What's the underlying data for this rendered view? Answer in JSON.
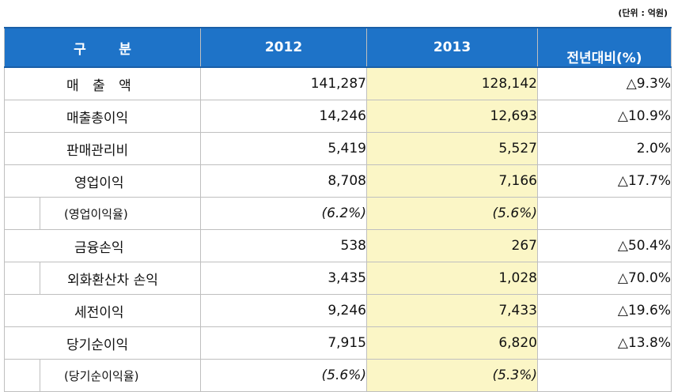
{
  "unit_note": "(단위 : 억원)",
  "headers": {
    "category": "구       분",
    "y2012": "2012",
    "y2013": "2013",
    "yoy": "전년대비(%)"
  },
  "rows": [
    {
      "label": "매 출 액",
      "v2012": "141,287",
      "v2013": "128,142",
      "yoy": "△9.3%"
    },
    {
      "label": "매출총이익",
      "v2012": "14,246",
      "v2013": "12,693",
      "yoy": "△10.9%"
    },
    {
      "label": "판매관리비",
      "v2012": "5,419",
      "v2013": "5,527",
      "yoy": "2.0%"
    },
    {
      "label": "영업이익",
      "v2012": "8,708",
      "v2013": "7,166",
      "yoy": "△17.7%"
    },
    {
      "label": "(영업이익율)",
      "v2012": "(6.2%)",
      "v2013": "(5.6%)",
      "yoy": ""
    },
    {
      "label": "금융손익",
      "v2012": "538",
      "v2013": "267",
      "yoy": "△50.4%"
    },
    {
      "label": "외화환산차 손익",
      "v2012": "3,435",
      "v2013": "1,028",
      "yoy": "△70.0%"
    },
    {
      "label": "세전이익",
      "v2012": "9,246",
      "v2013": "7,433",
      "yoy": "△19.6%"
    },
    {
      "label": "당기순이익",
      "v2012": "7,915",
      "v2013": "6,820",
      "yoy": "△13.8%"
    },
    {
      "label": "(당기순이익율)",
      "v2012": "(5.6%)",
      "v2013": "(5.3%)",
      "yoy": ""
    }
  ],
  "colors": {
    "header_bg": "#1e73c8",
    "highlight": "#fbf6c6"
  }
}
